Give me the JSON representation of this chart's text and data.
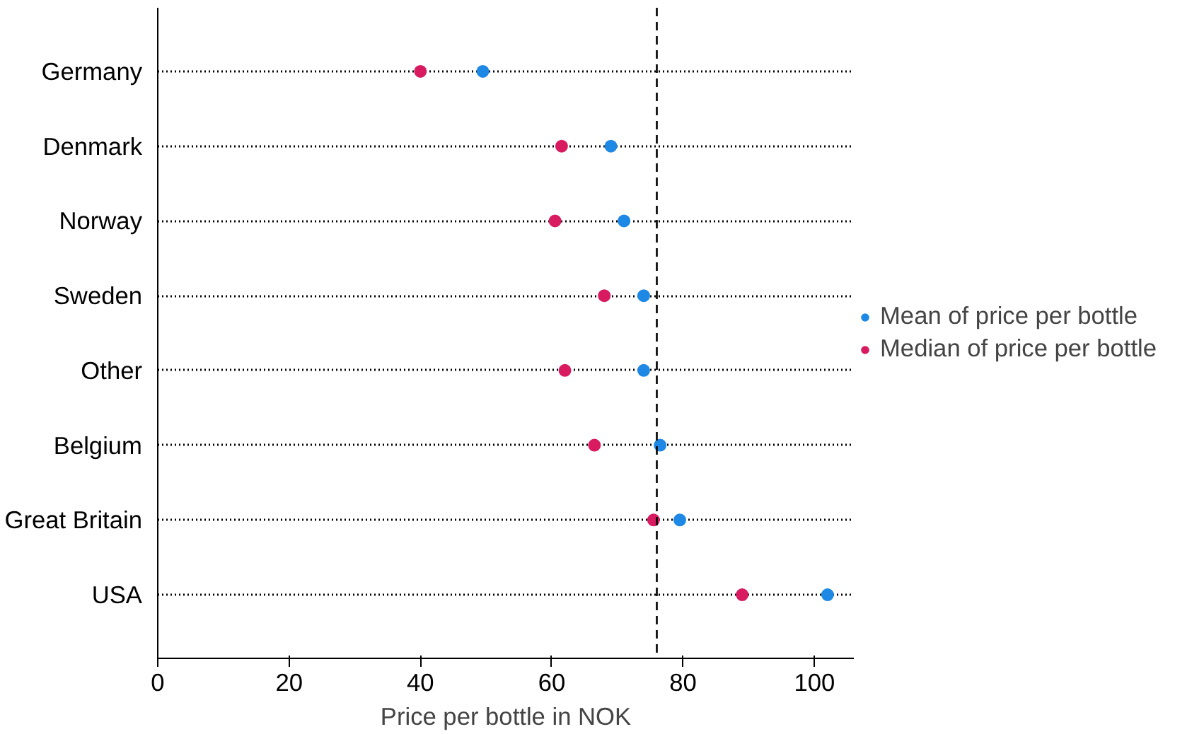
{
  "chart_data": {
    "type": "scatter",
    "xlabel": "Price per bottle in NOK",
    "categories": [
      "Germany",
      "Denmark",
      "Norway",
      "Sweden",
      "Other",
      "Belgium",
      "Great Britain",
      "USA"
    ],
    "orientation": "horizontal",
    "series": [
      {
        "name": "Mean of price per bottle",
        "color": "#1e88e5",
        "values": [
          49.5,
          69,
          71,
          74,
          74,
          76.5,
          79.5,
          102
        ]
      },
      {
        "name": "Median of price per bottle",
        "color": "#d81b60",
        "values": [
          40,
          61.5,
          60.5,
          68,
          62,
          66.5,
          75.5,
          89
        ]
      }
    ],
    "xlim": [
      0,
      106
    ],
    "xticks": [
      0,
      20,
      40,
      60,
      80,
      100
    ],
    "ref_lines": [
      {
        "axis": "x",
        "value": 76,
        "label": null,
        "color": "#000000",
        "line_style": "dashed"
      }
    ],
    "grid": "y",
    "legend": "right",
    "marker": "circle"
  }
}
